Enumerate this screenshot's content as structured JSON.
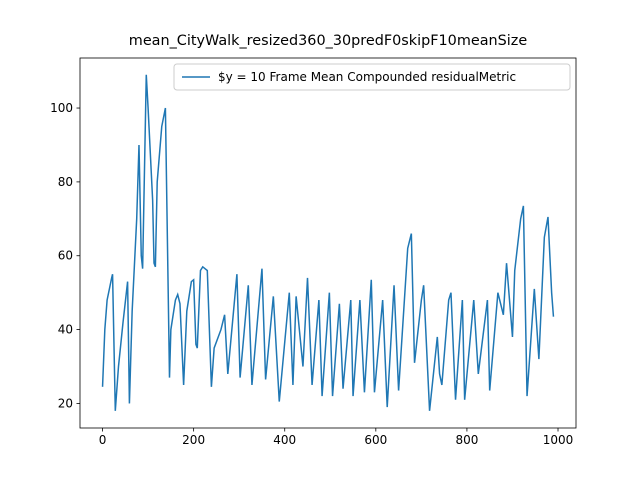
{
  "chart_data": {
    "type": "line",
    "title": "mean_CityWalk_resized360_30predF0skipF10meanSize",
    "x": [
      0,
      5,
      10,
      15,
      20,
      22,
      28,
      35,
      45,
      55,
      59,
      65,
      75,
      80,
      85,
      88,
      96,
      100,
      110,
      113,
      116,
      120,
      130,
      138,
      147,
      150,
      160,
      165,
      170,
      178,
      185,
      195,
      200,
      205,
      208,
      215,
      220,
      230,
      239,
      245,
      260,
      268,
      275,
      295,
      302,
      320,
      328,
      350,
      358,
      375,
      388,
      410,
      418,
      425,
      440,
      450,
      460,
      475,
      482,
      498,
      505,
      520,
      528,
      545,
      550,
      565,
      575,
      590,
      597,
      615,
      625,
      640,
      650,
      670,
      678,
      685,
      700,
      705,
      718,
      735,
      740,
      745,
      760,
      765,
      775,
      790,
      795,
      815,
      825,
      845,
      850,
      868,
      880,
      887,
      900,
      905,
      918,
      924,
      932,
      948,
      958,
      970,
      978,
      986,
      990
    ],
    "series": [
      {
        "name": "$y = 10 Frame Mean Compounded residualMetric",
        "color": "#1f77b4",
        "values": [
          24.5,
          40,
          48,
          51,
          54,
          55,
          18,
          30,
          42,
          53,
          20,
          45,
          70,
          90,
          60,
          56.5,
          109,
          100,
          75,
          58,
          57,
          80,
          95,
          100,
          27,
          40,
          48,
          49.5,
          47,
          25,
          45,
          53,
          53.5,
          36,
          35,
          56,
          57,
          56,
          24.5,
          35,
          40,
          44,
          28,
          55,
          27,
          52,
          25,
          56.5,
          26.5,
          49,
          20.5,
          50,
          25,
          49,
          30,
          54,
          25,
          48,
          22,
          50,
          22,
          47,
          24,
          48,
          22,
          48,
          23,
          53.5,
          23,
          48,
          19,
          52,
          23.5,
          62,
          66,
          31,
          48,
          52,
          18,
          38,
          28,
          25,
          48,
          50,
          21,
          48,
          21,
          48,
          28,
          48,
          23.5,
          50,
          44,
          58,
          38,
          56,
          70,
          73.5,
          22,
          51,
          32,
          65,
          70.5,
          50,
          43.5
        ]
      }
    ],
    "xlim": [
      -49.5,
      1039.5
    ],
    "ylim": [
      13.35,
      113.55
    ],
    "xticks": [
      0,
      200,
      400,
      600,
      800,
      1000
    ],
    "yticks": [
      20,
      40,
      60,
      80,
      100
    ],
    "legend": "upper right"
  }
}
